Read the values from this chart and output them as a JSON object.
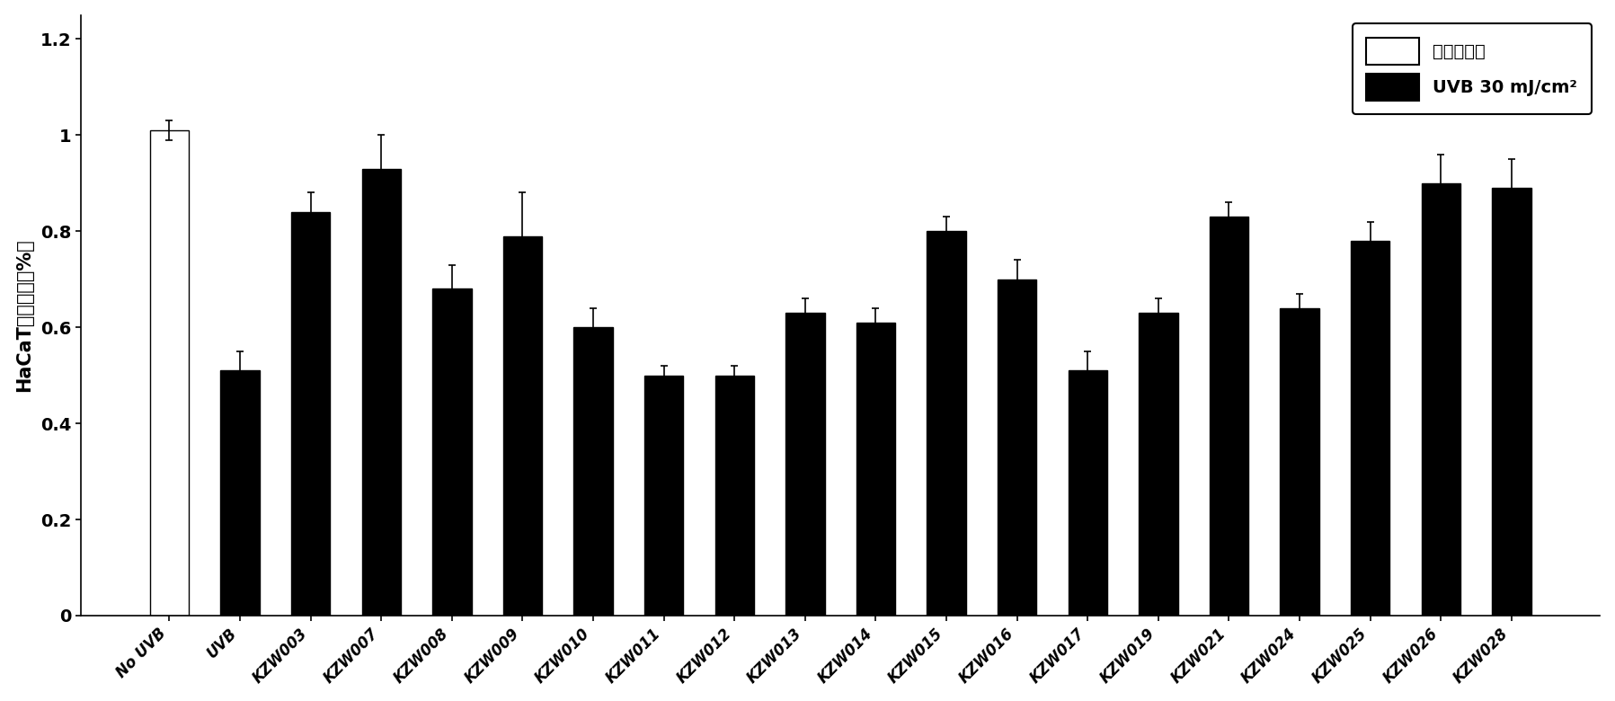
{
  "categories": [
    "No UVB",
    "UVB",
    "KZW003",
    "KZW007",
    "KZW008",
    "KZW009",
    "KZW010",
    "KZW011",
    "KZW012",
    "KZW013",
    "KZW014",
    "KZW015",
    "KZW016",
    "KZW017",
    "KZW019",
    "KZW021",
    "KZW024",
    "KZW025",
    "KZW026",
    "KZW028"
  ],
  "values": [
    1.01,
    0.51,
    0.84,
    0.93,
    0.68,
    0.79,
    0.6,
    0.5,
    0.5,
    0.63,
    0.61,
    0.8,
    0.7,
    0.51,
    0.63,
    0.83,
    0.64,
    0.78,
    0.9,
    0.89
  ],
  "errors": [
    0.02,
    0.04,
    0.04,
    0.07,
    0.05,
    0.09,
    0.04,
    0.02,
    0.02,
    0.03,
    0.03,
    0.03,
    0.04,
    0.04,
    0.03,
    0.03,
    0.03,
    0.04,
    0.06,
    0.06
  ],
  "bar_colors": [
    "white",
    "black",
    "black",
    "black",
    "black",
    "black",
    "black",
    "black",
    "black",
    "black",
    "black",
    "black",
    "black",
    "black",
    "black",
    "black",
    "black",
    "black",
    "black",
    "black"
  ],
  "edge_colors": [
    "black",
    "black",
    "black",
    "black",
    "black",
    "black",
    "black",
    "black",
    "black",
    "black",
    "black",
    "black",
    "black",
    "black",
    "black",
    "black",
    "black",
    "black",
    "black",
    "black"
  ],
  "ylabel": "HaCaT细胞活性（%）",
  "ylim": [
    0,
    1.25
  ],
  "yticks": [
    0,
    0.2,
    0.4,
    0.6,
    0.8,
    1.0,
    1.2
  ],
  "ytick_labels": [
    "0",
    "0.2",
    "0.4",
    "0.6",
    "0.8",
    "1",
    "1.2"
  ],
  "legend_label_1": "无紫外照射",
  "legend_label_2": "UVB 30 mJ/cm²",
  "legend_colors": [
    "white",
    "black"
  ],
  "background_color": "#ffffff",
  "bar_width": 0.55,
  "figsize": [
    17.97,
    7.8
  ],
  "dpi": 100
}
